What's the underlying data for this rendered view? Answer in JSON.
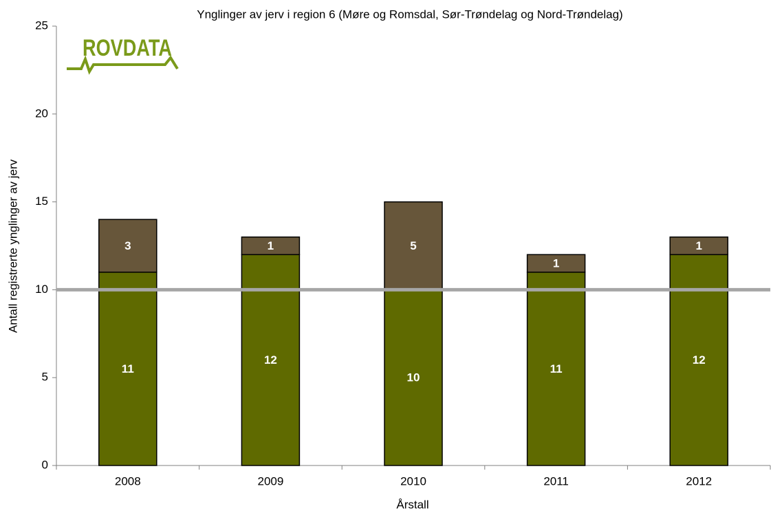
{
  "chart_data": {
    "type": "stacked_bar",
    "title": "Ynglinger av jerv i region 6 (Møre og Romsdal, Sør-Trøndelag og Nord-Trøndelag)",
    "logo": "ROVDATA",
    "x_label": "Årstall",
    "y_label": "Antall registrerte ynglinger av jerv",
    "categories": [
      "2008",
      "2009",
      "2010",
      "2011",
      "2012"
    ],
    "series": [
      {
        "color": "#5f6a00",
        "values": [
          11,
          12,
          10,
          11,
          12
        ]
      },
      {
        "color": "#67563a",
        "values": [
          3,
          1,
          5,
          1,
          1
        ]
      }
    ],
    "reference_line": {
      "value": 10,
      "color": "#a6a6a6"
    },
    "ylim": [
      0,
      25
    ],
    "yticks": [
      0,
      5,
      10,
      15,
      20,
      25
    ]
  }
}
